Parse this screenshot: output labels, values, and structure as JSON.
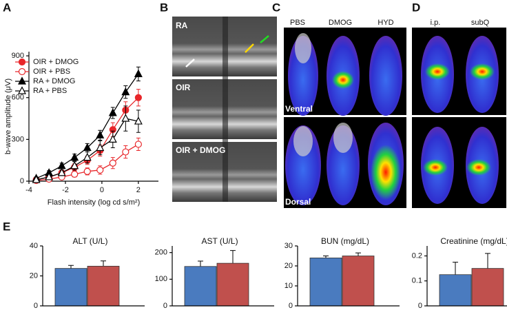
{
  "chart_data": [
    {
      "type": "line",
      "ylabel": "b-wave amplitude (μV)",
      "xlabel": "Flash intensity (log cd s/m²)",
      "x": [
        -3.6,
        -2.9,
        -2.2,
        -1.5,
        -0.8,
        -0.1,
        0.6,
        1.3,
        2.0
      ],
      "xlim": [
        -4,
        3.1
      ],
      "xticks": [
        -4,
        -2,
        0,
        2
      ],
      "ylim": [
        0,
        930
      ],
      "yticks": [
        0,
        300,
        600,
        900
      ],
      "series": [
        {
          "name": "OIR + DMOG",
          "color": "#e8262a",
          "marker": "circle",
          "filled": true,
          "values": [
            10,
            30,
            60,
            100,
            150,
            220,
            370,
            510,
            600
          ],
          "errors": [
            10,
            15,
            20,
            25,
            30,
            40,
            50,
            60,
            60
          ]
        },
        {
          "name": "OIR + PBS",
          "color": "#e8262a",
          "marker": "circle",
          "filled": false,
          "values": [
            5,
            15,
            30,
            50,
            70,
            80,
            130,
            210,
            265
          ],
          "errors": [
            5,
            10,
            15,
            20,
            25,
            30,
            40,
            45,
            45
          ]
        },
        {
          "name": "RA + DMOG",
          "color": "#000000",
          "marker": "triangle",
          "filled": true,
          "values": [
            20,
            60,
            110,
            170,
            240,
            330,
            490,
            640,
            770
          ],
          "errors": [
            10,
            15,
            20,
            25,
            30,
            35,
            40,
            45,
            50
          ]
        },
        {
          "name": "RA + PBS",
          "color": "#000000",
          "marker": "triangle",
          "filled": false,
          "values": [
            10,
            30,
            60,
            110,
            170,
            240,
            300,
            450,
            430
          ],
          "errors": [
            10,
            15,
            20,
            30,
            40,
            50,
            60,
            90,
            80
          ]
        }
      ]
    },
    {
      "type": "bar",
      "title": "ALT (U/L)",
      "values": [
        25,
        26.5
      ],
      "errors": [
        2,
        3.5
      ],
      "colors": [
        "#4a7bbf",
        "#c0504d"
      ],
      "ylim": [
        0,
        40
      ],
      "yticks": [
        0,
        20,
        40
      ]
    },
    {
      "type": "bar",
      "title": "AST (U/L)",
      "values": [
        148,
        160
      ],
      "errors": [
        20,
        48
      ],
      "colors": [
        "#4a7bbf",
        "#c0504d"
      ],
      "ylim": [
        0,
        225
      ],
      "yticks": [
        0,
        100,
        200
      ]
    },
    {
      "type": "bar",
      "title": "BUN (mg/dL)",
      "values": [
        24,
        25
      ],
      "errors": [
        1,
        1.5
      ],
      "colors": [
        "#4a7bbf",
        "#c0504d"
      ],
      "ylim": [
        0,
        30
      ],
      "yticks": [
        0,
        10,
        20,
        30
      ]
    },
    {
      "type": "bar",
      "title": "Creatinine (mg/dL)",
      "values": [
        0.125,
        0.15
      ],
      "errors": [
        0.05,
        0.06
      ],
      "colors": [
        "#4a7bbf",
        "#c0504d"
      ],
      "ylim": [
        0,
        0.24
      ],
      "yticks": [
        0,
        0.1,
        0.2
      ]
    }
  ],
  "panel_labels": [
    "A",
    "B",
    "C",
    "D",
    "E"
  ],
  "oct": [
    "RA",
    "OIR",
    "OIR + DMOG"
  ],
  "imaging": {
    "C": {
      "columns": [
        "PBS",
        "DMOG",
        "HYD"
      ],
      "rows": [
        "Ventral",
        "Dorsal"
      ]
    },
    "D": {
      "columns": [
        "i.p.",
        "subQ"
      ]
    }
  }
}
